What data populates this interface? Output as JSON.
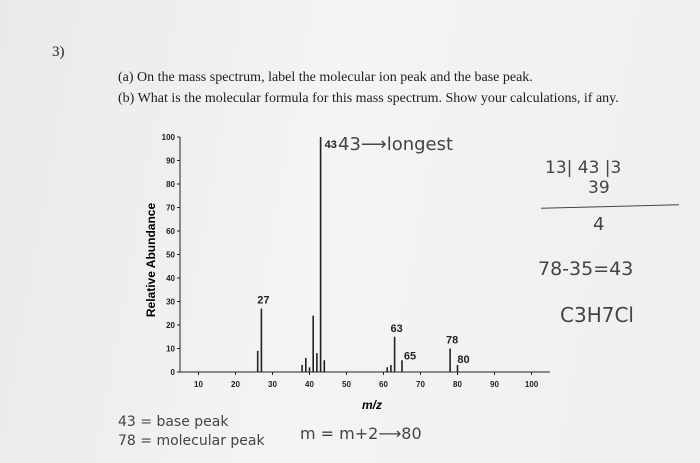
{
  "question": {
    "number": "3)",
    "part_a": "(a) On the mass spectrum, label the molecular ion peak and the base peak.",
    "part_b": "(b) What is the molecular formula for this mass spectrum. Show your calculations, if any."
  },
  "chart_data": {
    "type": "bar",
    "xlabel": "m/z",
    "ylabel": "Relative Abundance",
    "xlim": [
      5,
      105
    ],
    "ylim": [
      0,
      100
    ],
    "x_ticks": [
      10,
      20,
      30,
      40,
      50,
      60,
      70,
      80,
      90,
      100
    ],
    "y_ticks": [
      0,
      10,
      20,
      30,
      40,
      50,
      60,
      70,
      80,
      90,
      100
    ],
    "peaks": [
      {
        "x": 26,
        "y": 9
      },
      {
        "x": 27,
        "y": 27,
        "label": "27"
      },
      {
        "x": 38,
        "y": 3
      },
      {
        "x": 39,
        "y": 6
      },
      {
        "x": 40,
        "y": 2
      },
      {
        "x": 41,
        "y": 24
      },
      {
        "x": 42,
        "y": 8
      },
      {
        "x": 43,
        "y": 100,
        "label": "43"
      },
      {
        "x": 44,
        "y": 5
      },
      {
        "x": 61,
        "y": 2
      },
      {
        "x": 62,
        "y": 3
      },
      {
        "x": 63,
        "y": 15,
        "label": "63"
      },
      {
        "x": 65,
        "y": 5,
        "label": "65"
      },
      {
        "x": 78,
        "y": 10,
        "label": "78"
      },
      {
        "x": 80,
        "y": 3,
        "label": "80"
      }
    ],
    "bar_color": "#222222"
  },
  "handwriting": {
    "peak_note": "43⟶longest",
    "calc_top": "13| 43 |3",
    "calc_mid": "39",
    "calc_div": "4",
    "calc_sub": "78-35=43",
    "formula": "C3H7Cl",
    "base_peak": "43 = base peak",
    "molecular_peak": "78 = molecular peak",
    "m_plus_2": "m = m+2⟶80",
    "ink_color": "#3d3d3d"
  }
}
